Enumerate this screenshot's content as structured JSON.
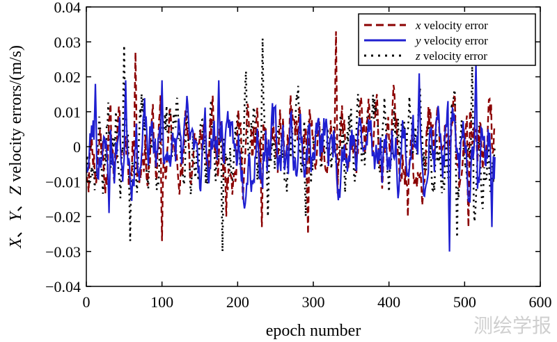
{
  "chart_data": {
    "type": "line",
    "title": "",
    "xlabel": "epoch number",
    "ylabel_parts": [
      "X",
      "、",
      "Y",
      "、",
      "Z",
      " velocity errors/(m/s)"
    ],
    "xlim": [
      0,
      600
    ],
    "ylim": [
      -0.04,
      0.04
    ],
    "xticks": [
      0,
      100,
      200,
      300,
      400,
      500,
      600
    ],
    "xtick_labels": [
      "0",
      "100",
      "200",
      "300",
      "400",
      "500",
      "600"
    ],
    "yticks": [
      -0.04,
      -0.03,
      -0.02,
      -0.01,
      0,
      0.01,
      0.02,
      0.03,
      0.04
    ],
    "ytick_labels": [
      "−0.04",
      "−0.03",
      "−0.02",
      "−0.01",
      "0",
      "0.01",
      "0.02",
      "0.03",
      "0.04"
    ],
    "grid": false,
    "legend_position": "top-right",
    "series": [
      {
        "name": "x velocity error",
        "legend_var": "x",
        "legend_text": " velocity error",
        "color": "#8b0000",
        "style": "dashed",
        "x_start": 0,
        "x_end": 540,
        "count": 541,
        "seed": 11,
        "amplitude": 0.0095,
        "peaks": [
          [
            65,
            0.027
          ],
          [
            100,
            -0.027
          ],
          [
            185,
            -0.02
          ],
          [
            232,
            -0.023
          ],
          [
            293,
            -0.025
          ],
          [
            330,
            0.033
          ],
          [
            425,
            -0.02
          ],
          [
            505,
            -0.023
          ]
        ]
      },
      {
        "name": "y velocity error",
        "legend_var": "y",
        "legend_text": " velocity error",
        "color": "#1f1fd0",
        "style": "solid",
        "x_start": 0,
        "x_end": 540,
        "count": 541,
        "seed": 23,
        "amplitude": 0.0085,
        "peaks": [
          [
            12,
            0.018
          ],
          [
            30,
            -0.019
          ],
          [
            52,
            0.019
          ],
          [
            100,
            0.019
          ],
          [
            175,
            0.019
          ],
          [
            440,
            0.021
          ],
          [
            480,
            -0.03
          ],
          [
            515,
            0.024
          ],
          [
            536,
            -0.023
          ]
        ]
      },
      {
        "name": "z velocity error",
        "legend_var": "z",
        "legend_text": " velocity error",
        "color": "#000000",
        "style": "dotted",
        "x_start": 0,
        "x_end": 540,
        "count": 541,
        "seed": 37,
        "amplitude": 0.0105,
        "peaks": [
          [
            50,
            0.029
          ],
          [
            58,
            -0.027
          ],
          [
            180,
            -0.03
          ],
          [
            233,
            0.031
          ],
          [
            240,
            -0.02
          ],
          [
            290,
            -0.02
          ],
          [
            490,
            -0.026
          ],
          [
            510,
            0.023
          ]
        ]
      }
    ]
  },
  "watermark": "测绘学报"
}
